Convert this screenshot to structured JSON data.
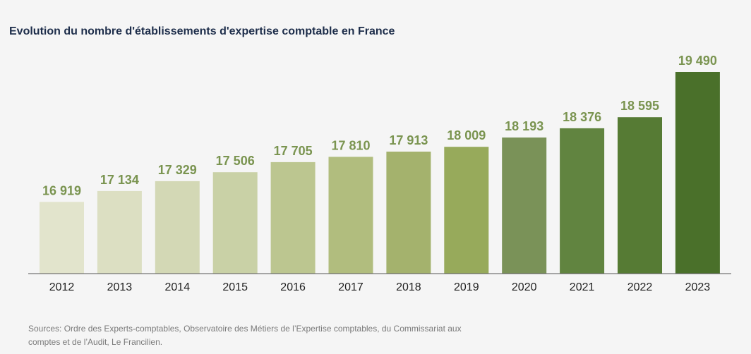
{
  "chart_data": {
    "type": "bar",
    "title": "Evolution du nombre d'établissements d'expertise comptable en France",
    "categories": [
      "2012",
      "2013",
      "2014",
      "2015",
      "2016",
      "2017",
      "2018",
      "2019",
      "2020",
      "2021",
      "2022",
      "2023"
    ],
    "values": [
      16919,
      17134,
      17329,
      17506,
      17705,
      17810,
      17913,
      18009,
      18193,
      18376,
      18595,
      19490
    ],
    "value_labels": [
      "16 919",
      "17 134",
      "17 329",
      "17 506",
      "17 705",
      "17 810",
      "17 913",
      "18 009",
      "18 193",
      "18 376",
      "18 595",
      "19 490"
    ],
    "xlabel": "",
    "ylabel": "",
    "ylim": [
      15500,
      19490
    ],
    "grid": false,
    "bar_colors": [
      "#e2e4cc",
      "#dcdfc2",
      "#d3d8b5",
      "#c9d1a6",
      "#bcc690",
      "#b1bd7e",
      "#a4b26d",
      "#97aa5b",
      "#7a9258",
      "#618440",
      "#567b34",
      "#4a702a"
    ],
    "label_color": "#7a9450",
    "axis_color": "#555555"
  },
  "source": "Sources: Ordre des Experts-comptables, Observatoire des Métiers de l’Expertise comptables, du Commissariat aux comptes et de l’Audit, Le Francilien."
}
